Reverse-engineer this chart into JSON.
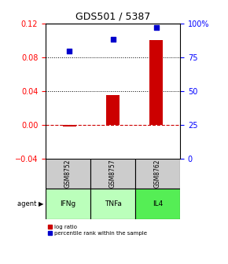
{
  "title": "GDS501 / 5387",
  "samples": [
    "GSM8752",
    "GSM8757",
    "GSM8762"
  ],
  "agents": [
    "IFNg",
    "TNFa",
    "IL4"
  ],
  "log_ratio": [
    -0.002,
    0.035,
    0.101
  ],
  "percentile": [
    0.795,
    0.885,
    0.973
  ],
  "ylim_left": [
    -0.04,
    0.12
  ],
  "ylim_right": [
    0.0,
    1.0
  ],
  "yticks_left": [
    -0.04,
    0.0,
    0.04,
    0.08,
    0.12
  ],
  "yticks_right_vals": [
    0.0,
    0.25,
    0.5,
    0.75,
    1.0
  ],
  "yticks_right_labels": [
    "0",
    "25",
    "50",
    "75",
    "100%"
  ],
  "bar_color": "#cc0000",
  "scatter_color": "#0000cc",
  "zero_line_color": "#cc0000",
  "sample_bg_color": "#cccccc",
  "agent_bg_color_light": "#bbffbb",
  "agent_bg_color_dark": "#55ee55",
  "legend_bar_color": "#cc0000",
  "legend_scatter_color": "#0000cc",
  "agent_colors": [
    "#bbffbb",
    "#bbffbb",
    "#55ee55"
  ]
}
